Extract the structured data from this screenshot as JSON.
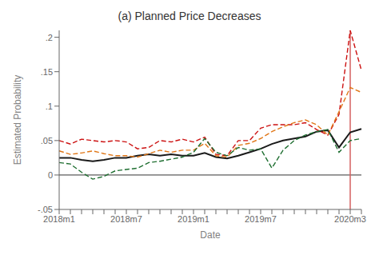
{
  "chart_data": {
    "type": "line",
    "title": "(a) Planned Price Decreases",
    "xlabel": "Date",
    "ylabel": "Estimated Probability",
    "categories": [
      "2018m1",
      null,
      null,
      null,
      null,
      null,
      "2018m7",
      null,
      null,
      null,
      null,
      null,
      "2019m1",
      null,
      null,
      null,
      null,
      null,
      "2019m7",
      null,
      null,
      null,
      null,
      null,
      null,
      null,
      "2020m3",
      null
    ],
    "series": [
      {
        "color": "#1a1a1a",
        "line_style": "solid",
        "values": [
          0.025,
          0.025,
          0.022,
          0.02,
          0.022,
          0.025,
          0.025,
          0.028,
          0.03,
          0.028,
          0.03,
          0.028,
          0.028,
          0.032,
          0.026,
          0.024,
          0.028,
          0.033,
          0.038,
          0.045,
          0.05,
          0.053,
          0.056,
          0.063,
          0.065,
          0.04,
          0.062,
          0.067
        ]
      },
      {
        "color": "#cc1111",
        "line_style": "dashed",
        "values": [
          0.05,
          0.045,
          0.052,
          0.05,
          0.048,
          0.05,
          0.048,
          0.038,
          0.04,
          0.05,
          0.048,
          0.052,
          0.048,
          0.055,
          0.03,
          0.028,
          0.05,
          0.05,
          0.068,
          0.073,
          0.073,
          0.073,
          0.076,
          0.066,
          0.058,
          0.088,
          0.21,
          0.152
        ]
      },
      {
        "color": "#e07718",
        "line_style": "dashed",
        "values": [
          0.035,
          0.03,
          0.032,
          0.035,
          0.031,
          0.028,
          0.028,
          0.026,
          0.031,
          0.036,
          0.033,
          0.036,
          0.036,
          0.046,
          0.028,
          0.026,
          0.043,
          0.046,
          0.053,
          0.063,
          0.07,
          0.076,
          0.08,
          0.073,
          0.058,
          0.092,
          0.127,
          0.12
        ]
      },
      {
        "color": "#1e6e30",
        "line_style": "dashed",
        "values": [
          0.018,
          0.016,
          0.004,
          -0.006,
          -0.002,
          0.006,
          0.008,
          0.01,
          0.018,
          0.02,
          0.023,
          0.026,
          0.033,
          0.053,
          0.033,
          0.028,
          0.04,
          0.036,
          0.038,
          0.01,
          0.036,
          0.05,
          0.058,
          0.063,
          0.066,
          0.033,
          0.05,
          0.053
        ]
      }
    ],
    "ylim": [
      -0.05,
      0.21
    ],
    "yticks": [
      {
        "value": -0.05,
        "label": "-.05"
      },
      0,
      {
        "value": 0.05,
        "label": ".05"
      },
      {
        "value": 0.1,
        "label": ".1"
      },
      {
        "value": 0.15,
        "label": ".15"
      },
      {
        "value": 0.2,
        "label": ".2"
      }
    ],
    "vline": {
      "x": "2020m3",
      "color": "#d46060"
    },
    "hline": {
      "y": 0,
      "color": "#333333"
    },
    "grid": false
  }
}
